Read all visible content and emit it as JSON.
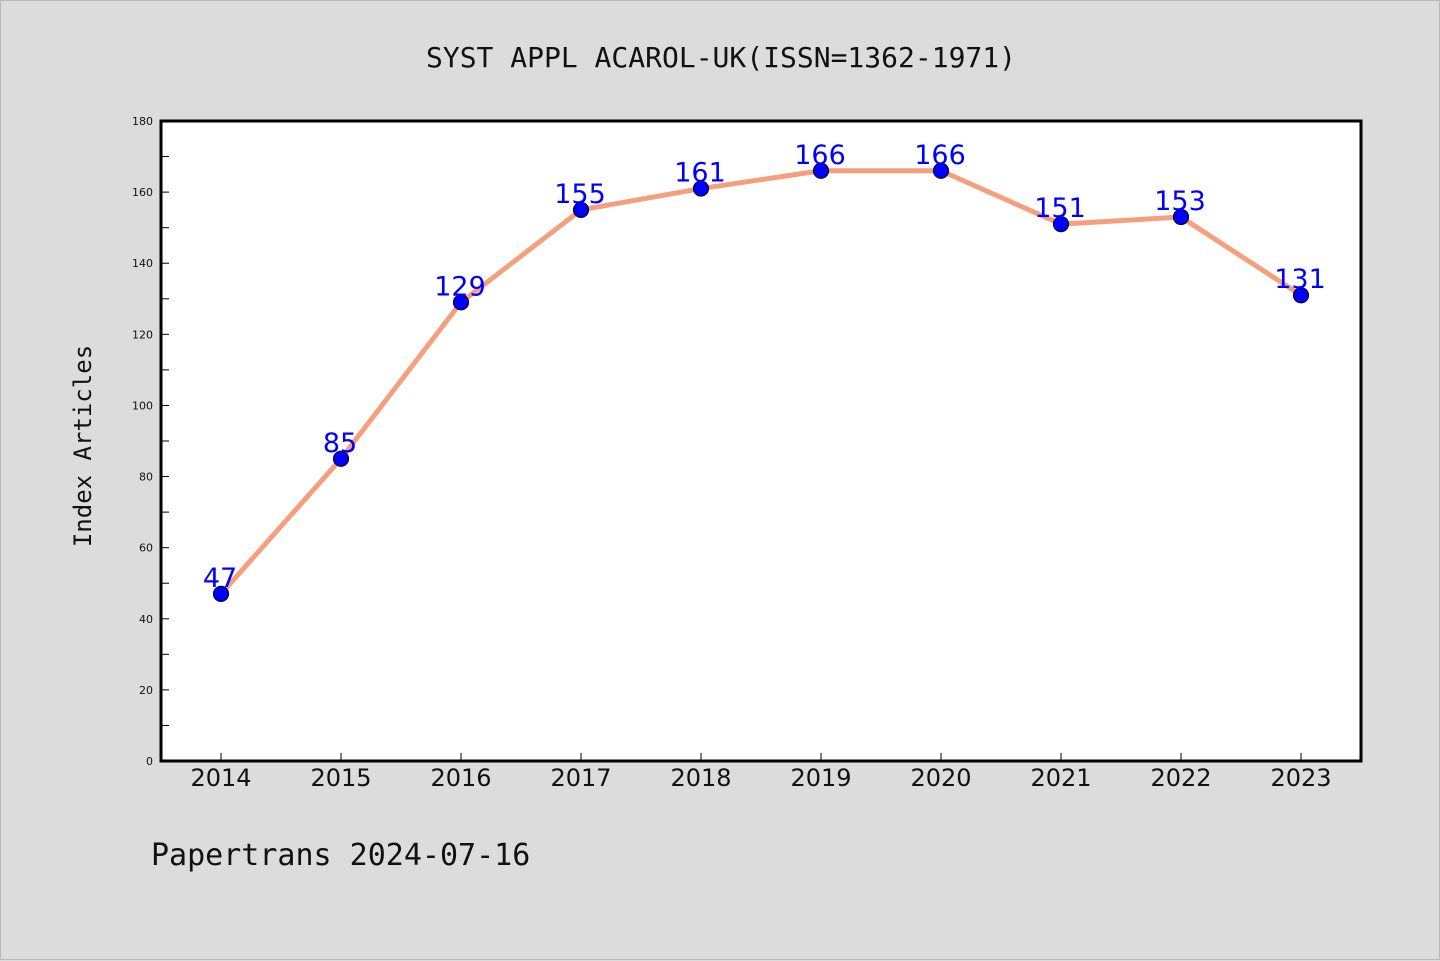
{
  "chart_data": {
    "type": "line",
    "title": "SYST APPL ACAROL-UK(ISSN=1362-1971)",
    "xlabel": "",
    "ylabel": "Index Articles",
    "categories": [
      "2014",
      "2015",
      "2016",
      "2017",
      "2018",
      "2019",
      "2020",
      "2021",
      "2022",
      "2023"
    ],
    "values": [
      47,
      85,
      129,
      155,
      161,
      166,
      166,
      151,
      153,
      131
    ],
    "ylim": [
      0,
      180
    ],
    "yticks": [
      0,
      20,
      40,
      60,
      80,
      100,
      120,
      140,
      160,
      180
    ],
    "grid": false,
    "legend": "none",
    "colors": {
      "line": "#f4a07f",
      "marker": "#0000ff",
      "marker_edge": "#000033",
      "label": "#0000ff",
      "background": "#dcdcdc",
      "plot_background": "#ffffff"
    }
  },
  "footer": {
    "credit": "Papertrans 2024-07-16"
  }
}
